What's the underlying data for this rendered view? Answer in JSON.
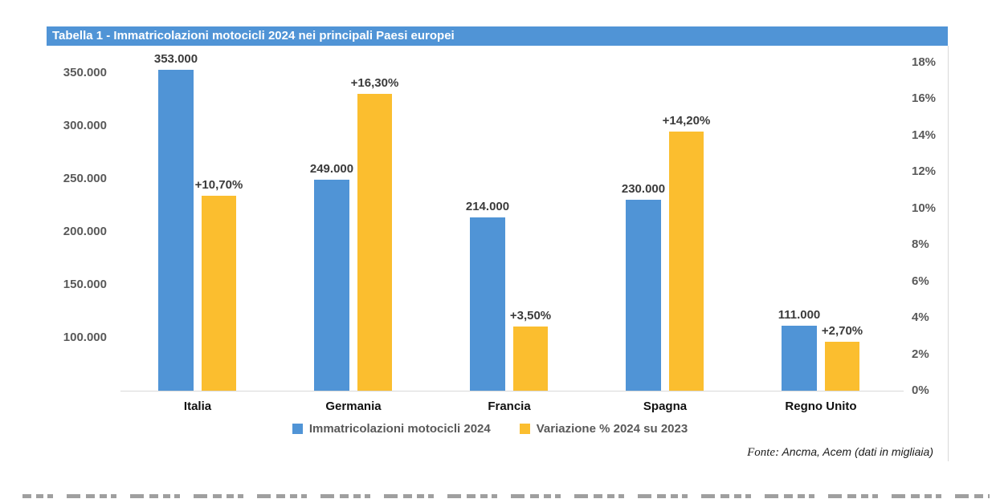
{
  "title_bar": {
    "text": "Tabella 1 - Immatricolazioni motocicli 2024 nei principali Paesi europei",
    "background_color": "#5094D6",
    "text_color": "#ffffff"
  },
  "chart_data": {
    "type": "bar",
    "title": "Tabella 1 - Immatricolazioni motocicli 2024 nei principali Paesi europei",
    "categories": [
      "Italia",
      "Germania",
      "Francia",
      "Spagna",
      "Regno Unito"
    ],
    "series": [
      {
        "name": "Immatricolazioni motocicli 2024",
        "axis": "left",
        "color": "#5094D6",
        "values": [
          353000,
          249000,
          214000,
          230000,
          111000
        ],
        "labels": [
          "353.000",
          "249.000",
          "214.000",
          "230.000",
          "111.000"
        ]
      },
      {
        "name": "Variazione % 2024 su 2023",
        "axis": "right",
        "color": "#FBBE2F",
        "values": [
          10.7,
          16.3,
          3.5,
          14.2,
          2.7
        ],
        "labels": [
          "+10,70%",
          "+16,30%",
          "+3,50%",
          "+14,20%",
          "+2,70%"
        ]
      }
    ],
    "left_axis": {
      "ticks": [
        "350.000",
        "300.000",
        "250.000",
        "200.000",
        "150.000",
        "100.000"
      ],
      "tick_values": [
        350000,
        300000,
        250000,
        200000,
        150000,
        100000
      ],
      "min": 50000,
      "max": 360000
    },
    "right_axis": {
      "ticks": [
        "18%",
        "16%",
        "14%",
        "12%",
        "10%",
        "8%",
        "6%",
        "4%",
        "2%",
        "0%"
      ],
      "tick_values": [
        18,
        16,
        14,
        12,
        10,
        8,
        6,
        4,
        2,
        0
      ],
      "min": 0,
      "max": 18
    },
    "legend_position": "bottom",
    "grid": false
  },
  "footer": {
    "fonte_label": "Fonte:",
    "fonte_text": " Ancma, Acem (dati in migliaia)"
  }
}
